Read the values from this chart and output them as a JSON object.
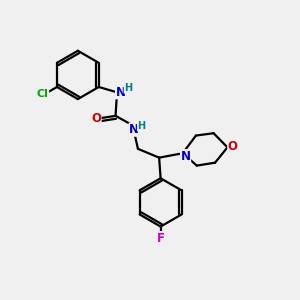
{
  "background_color": "#f0f0f0",
  "atom_colors": {
    "C": "#000000",
    "N": "#0000cc",
    "O": "#cc0000",
    "Cl": "#00aa00",
    "F": "#cc00cc",
    "H": "#008080"
  },
  "bond_color": "#000000",
  "bond_width": 1.6,
  "figsize": [
    3.0,
    3.0
  ],
  "dpi": 100
}
